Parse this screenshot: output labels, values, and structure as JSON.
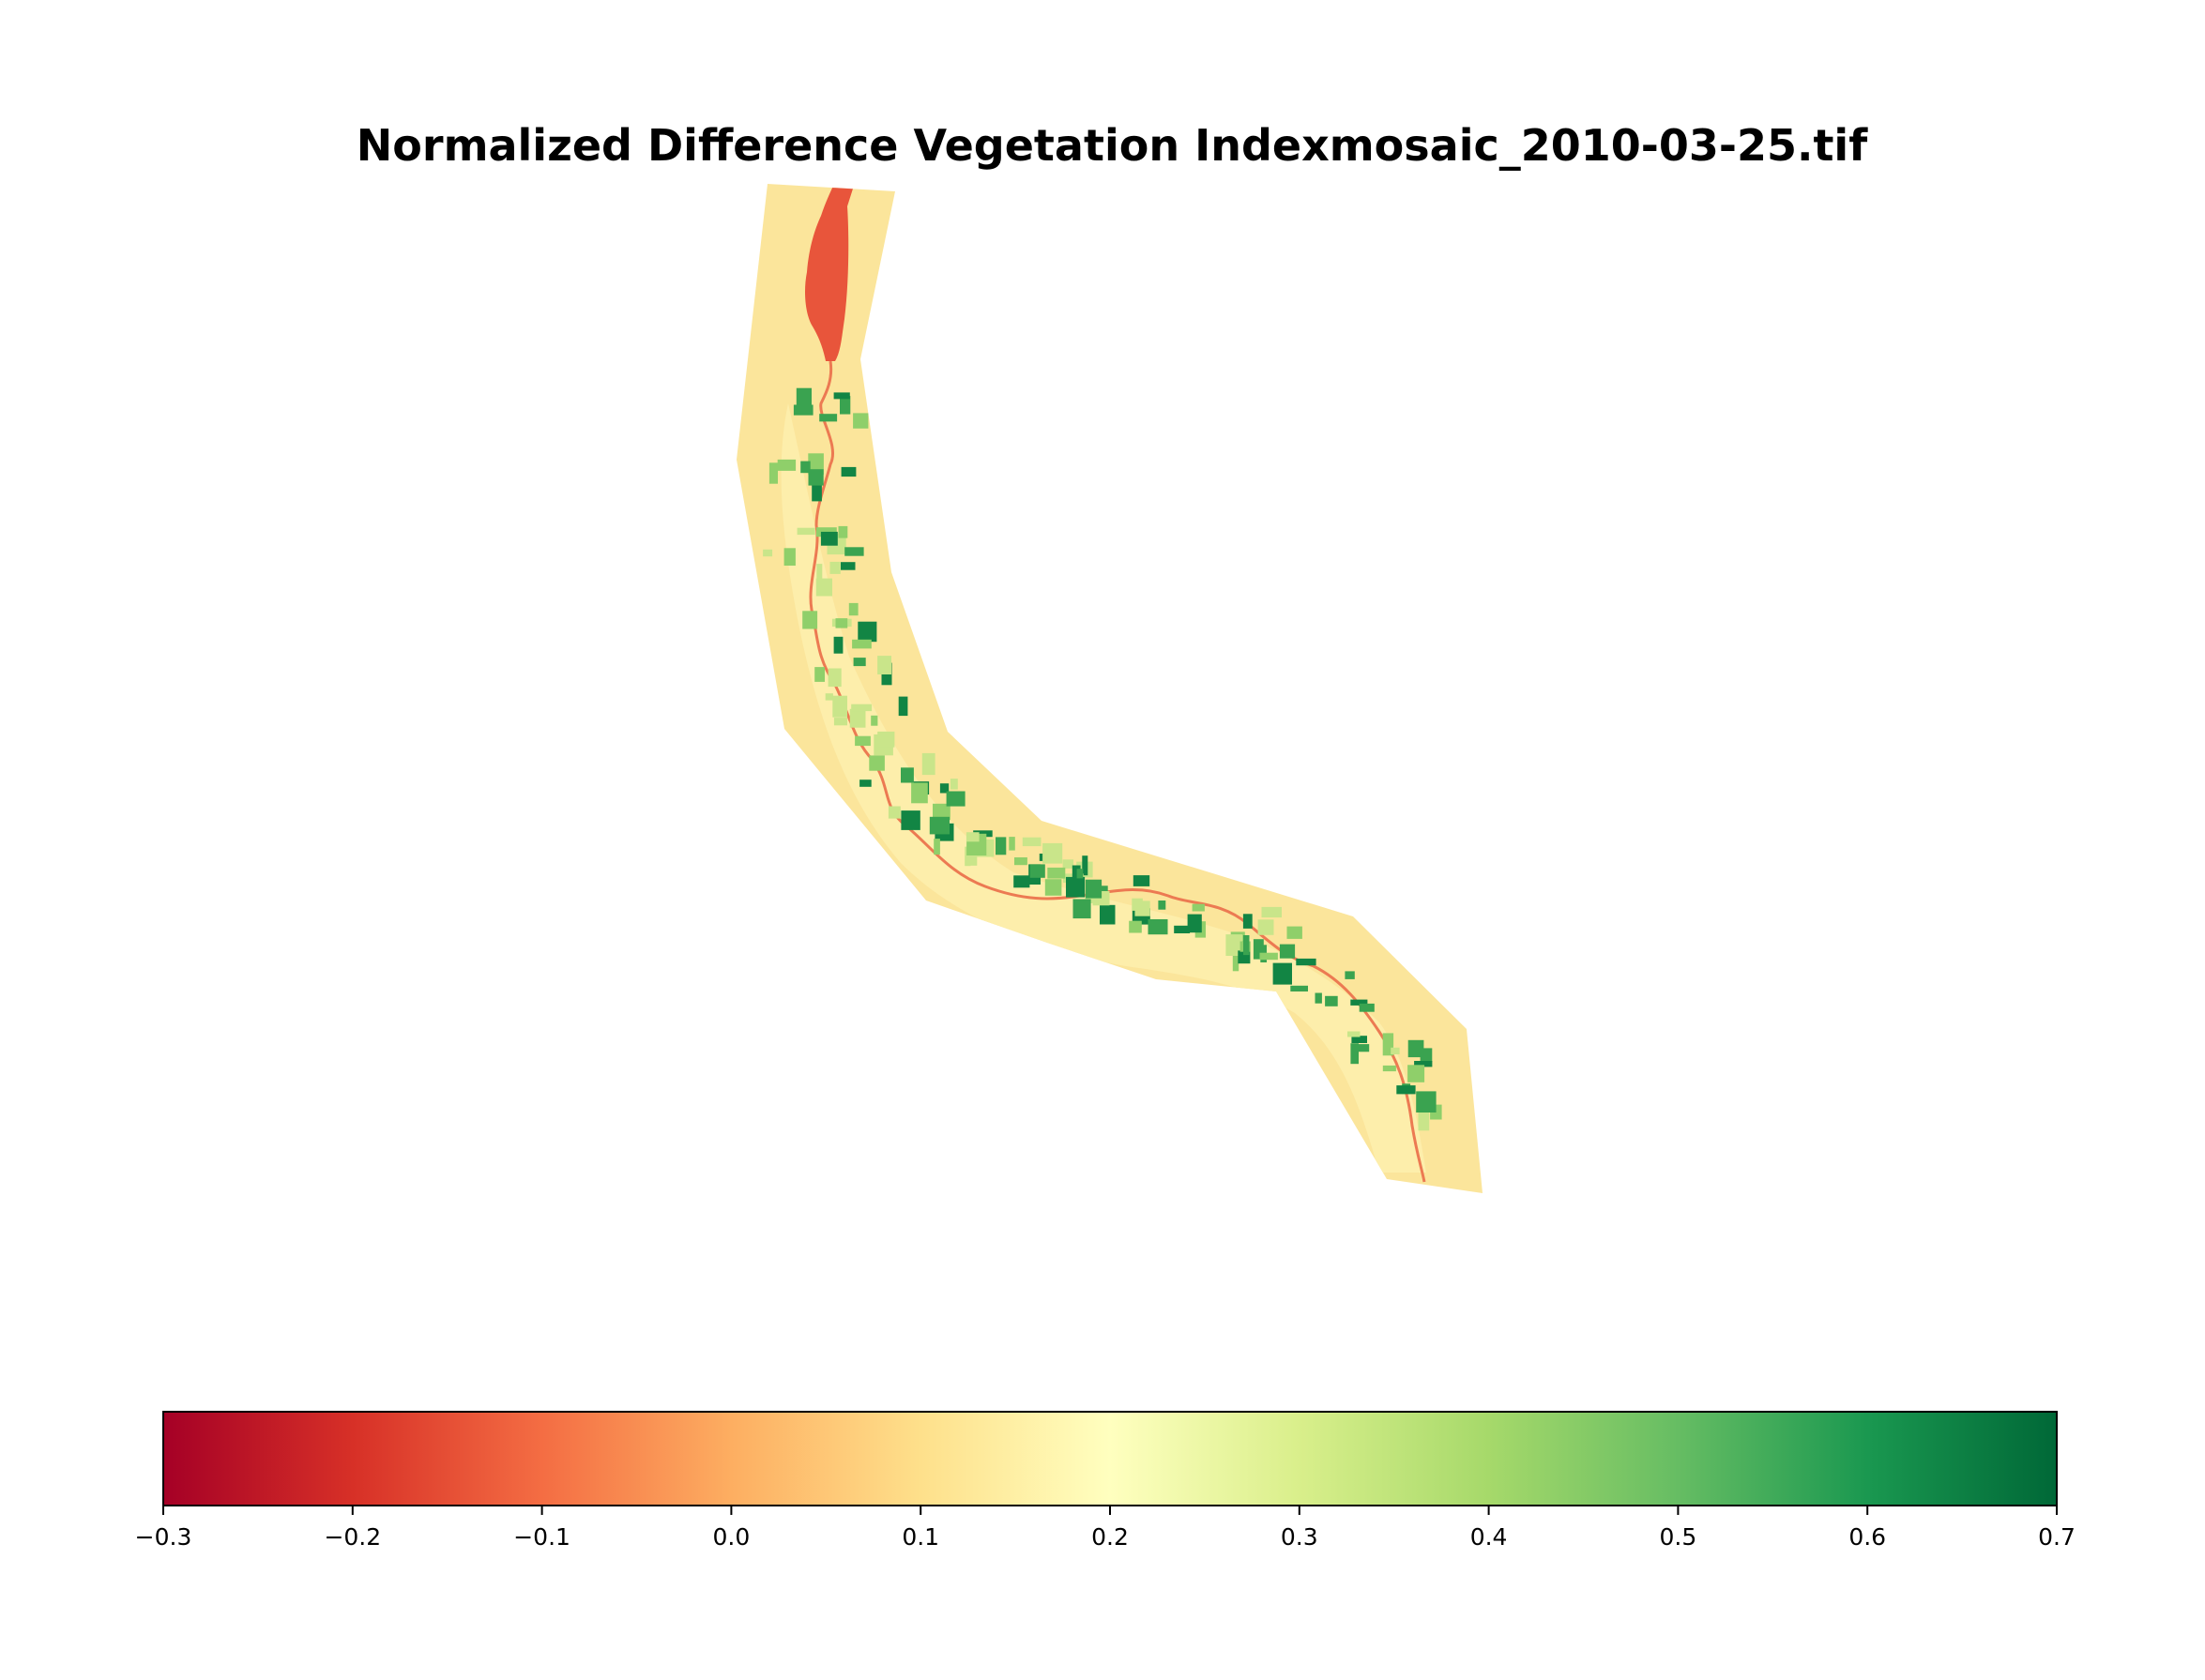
{
  "title": "Normalized Difference Vegetation Indexmosaic_2010-03-25.tif",
  "colormap": {
    "name": "RdYlGn",
    "stops": [
      "#a50026",
      "#d73027",
      "#f46d43",
      "#fdae61",
      "#fee08b",
      "#ffffbf",
      "#d9ef8b",
      "#a6d96a",
      "#66bd63",
      "#1a9850",
      "#006837"
    ]
  },
  "colorbar": {
    "vmin": -0.3,
    "vmax": 0.7,
    "ticks": [
      {
        "value": -0.3,
        "label": "−0.3"
      },
      {
        "value": -0.2,
        "label": "−0.2"
      },
      {
        "value": -0.1,
        "label": "−0.1"
      },
      {
        "value": 0.0,
        "label": "0.0"
      },
      {
        "value": 0.1,
        "label": "0.1"
      },
      {
        "value": 0.2,
        "label": "0.2"
      },
      {
        "value": 0.3,
        "label": "0.3"
      },
      {
        "value": 0.4,
        "label": "0.4"
      },
      {
        "value": 0.5,
        "label": "0.5"
      },
      {
        "value": 0.6,
        "label": "0.6"
      },
      {
        "value": 0.7,
        "label": "0.7"
      }
    ]
  },
  "map_colors": {
    "background_land": "#fbe59b",
    "land_light": "#fdeeab",
    "reservoir": "#e8553b",
    "river": "#ec7a52",
    "vegetation_light": "#c9e58a",
    "vegetation_mid": "#8fcf6a",
    "vegetation_dense": "#3aa350",
    "vegetation_darkest": "#128544"
  }
}
